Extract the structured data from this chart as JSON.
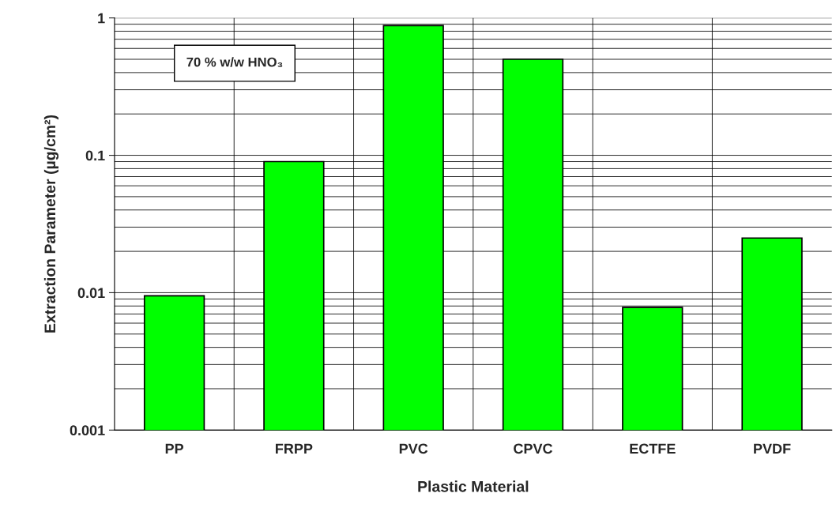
{
  "chart_data": {
    "type": "bar",
    "xlabel": "Plastic Material",
    "ylabel": "Extraction Parameter (µg/cm²)",
    "categories": [
      "PP",
      "FRPP",
      "PVC",
      "CPVC",
      "ECTFE",
      "PVDF"
    ],
    "values": [
      0.0095,
      0.09,
      0.88,
      0.5,
      0.0078,
      0.025
    ],
    "color": "#00ff00",
    "log": true,
    "ylim": [
      0.001,
      1
    ],
    "yticks": [
      0.001,
      0.01,
      0.1,
      1
    ],
    "grid": true,
    "annotations": [
      "70 % w/w HNO₃"
    ]
  }
}
